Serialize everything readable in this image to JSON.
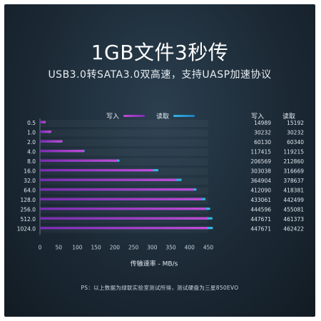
{
  "title": "1GB文件3秒传",
  "subtitle": "USB3.0转SATA3.0双高速，支持UASP加速协议",
  "colors": {
    "write": "#c04bd6",
    "read": "#35b3e0",
    "panel": "#1c2a36"
  },
  "footnote": "PS：以上数据为绿联实验室测试所得，测试硬盘为三星850EVO",
  "chart_data": {
    "type": "bar",
    "orientation": "horizontal",
    "categories": [
      "0.5",
      "1.0",
      "2.0",
      "4.0",
      "8.0",
      "16.0",
      "32.0",
      "64.0",
      "128.0",
      "256.0",
      "512.0",
      "1024.0"
    ],
    "series": [
      {
        "name": "写入",
        "values": [
          14989,
          30232,
          60130,
          117415,
          206569,
          303038,
          364904,
          412090,
          433061,
          444596,
          447671,
          447671
        ]
      },
      {
        "name": "读取",
        "values": [
          15192,
          30232,
          60340,
          119215,
          212860,
          316669,
          378637,
          418381,
          442499,
          455081,
          461373,
          462422
        ]
      }
    ],
    "table_headers": [
      "写入",
      "读取"
    ],
    "x_ticks": [
      0,
      50,
      100,
      150,
      200,
      250,
      300,
      350,
      400,
      450
    ],
    "xlim": [
      0,
      450
    ],
    "xlabel": "传输速率 - MB/s",
    "value_scale": 1000,
    "legend": "top",
    "grid": false
  }
}
